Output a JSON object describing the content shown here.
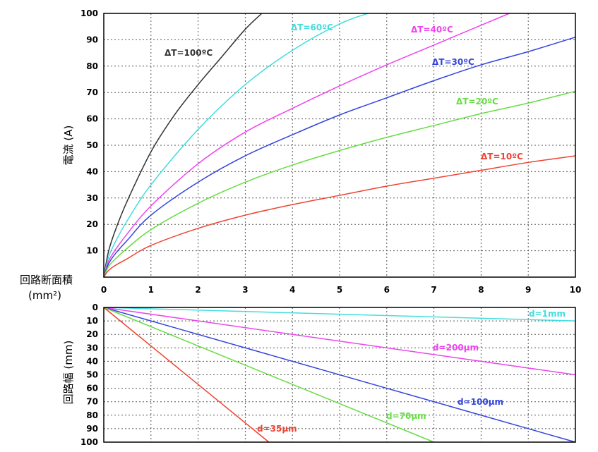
{
  "chart_data": [
    {
      "type": "line",
      "ylabel": "電流 (A)",
      "xlim": [
        0,
        10
      ],
      "ylim": [
        0,
        100
      ],
      "x_ticks": [
        "0",
        "1",
        "2",
        "3",
        "4",
        "5",
        "6",
        "7",
        "8",
        "9",
        "10"
      ],
      "y_ticks": [
        "10",
        "20",
        "30",
        "40",
        "50",
        "60",
        "70",
        "80",
        "90",
        "100"
      ],
      "grid": true,
      "series": [
        {
          "name": "ΔT=100ºC",
          "color": "#333333",
          "x": [
            0,
            0.1,
            0.25,
            0.5,
            1,
            1.5,
            2,
            2.5,
            3,
            3.35
          ],
          "y": [
            0,
            9.7,
            18,
            29,
            47.5,
            61.5,
            73,
            83.5,
            94,
            100
          ]
        },
        {
          "name": "ΔT=60ºC",
          "color": "#44dddd",
          "x": [
            0,
            0.1,
            0.25,
            0.5,
            1,
            2,
            3,
            4,
            5,
            5.6
          ],
          "y": [
            0,
            7.5,
            13.5,
            21.5,
            35,
            56,
            73,
            86,
            96,
            100
          ]
        },
        {
          "name": "ΔT=40ºC",
          "color": "#ee44ee",
          "x": [
            0,
            0.1,
            0.25,
            0.5,
            1,
            2,
            3,
            4,
            5,
            6,
            7,
            8,
            8.6
          ],
          "y": [
            0,
            6,
            10.5,
            16.5,
            27,
            43,
            55,
            64,
            72.5,
            80.5,
            88,
            95.5,
            100
          ]
        },
        {
          "name": "ΔT=30ºC",
          "color": "#3344dd",
          "x": [
            0,
            0.1,
            0.25,
            0.5,
            1,
            2,
            3,
            4,
            5,
            6,
            7,
            8,
            9,
            10
          ],
          "y": [
            0,
            5,
            9,
            14,
            23.5,
            36,
            46,
            54,
            61.5,
            68,
            74.5,
            80.5,
            85.5,
            91
          ]
        },
        {
          "name": "ΔT=20ºC",
          "color": "#66dd44",
          "x": [
            0,
            0.1,
            0.25,
            0.5,
            1,
            2,
            3,
            4,
            5,
            6,
            7,
            8,
            9,
            10
          ],
          "y": [
            0,
            4,
            7,
            11,
            18,
            28,
            36,
            42.5,
            48,
            53,
            57.5,
            62,
            66,
            70.5
          ]
        },
        {
          "name": "ΔT=10ºC",
          "color": "#ee4433",
          "x": [
            0,
            0.1,
            0.25,
            0.5,
            1,
            2,
            3,
            4,
            5,
            6,
            7,
            8,
            9,
            10
          ],
          "y": [
            0,
            2.5,
            4.5,
            7,
            12,
            18.5,
            23.5,
            27.5,
            31,
            34.5,
            37.5,
            40.5,
            43.5,
            46
          ]
        }
      ]
    },
    {
      "type": "line",
      "ylabel": "回路幅 (mm)",
      "xlim": [
        0,
        10
      ],
      "ylim": [
        0,
        100
      ],
      "y_inverted": true,
      "y_ticks": [
        "0",
        "10",
        "20",
        "30",
        "40",
        "50",
        "60",
        "70",
        "80",
        "90",
        "100"
      ],
      "grid": true,
      "series": [
        {
          "name": "d=1mm",
          "color": "#44dddd",
          "x": [
            0,
            10
          ],
          "y": [
            0,
            10
          ]
        },
        {
          "name": "d=200µm",
          "color": "#ee44ee",
          "x": [
            0,
            10
          ],
          "y": [
            0,
            50
          ]
        },
        {
          "name": "d=100µm",
          "color": "#3344dd",
          "x": [
            0,
            10
          ],
          "y": [
            0,
            100
          ]
        },
        {
          "name": "d=70µm",
          "color": "#66dd44",
          "x": [
            0,
            7
          ],
          "y": [
            0,
            100
          ]
        },
        {
          "name": "d=35µm",
          "color": "#ee4433",
          "x": [
            0,
            3.5
          ],
          "y": [
            0,
            100
          ]
        }
      ]
    }
  ],
  "shared_xlabel": "回路断面積",
  "shared_xlabel_unit": "(mm²)"
}
